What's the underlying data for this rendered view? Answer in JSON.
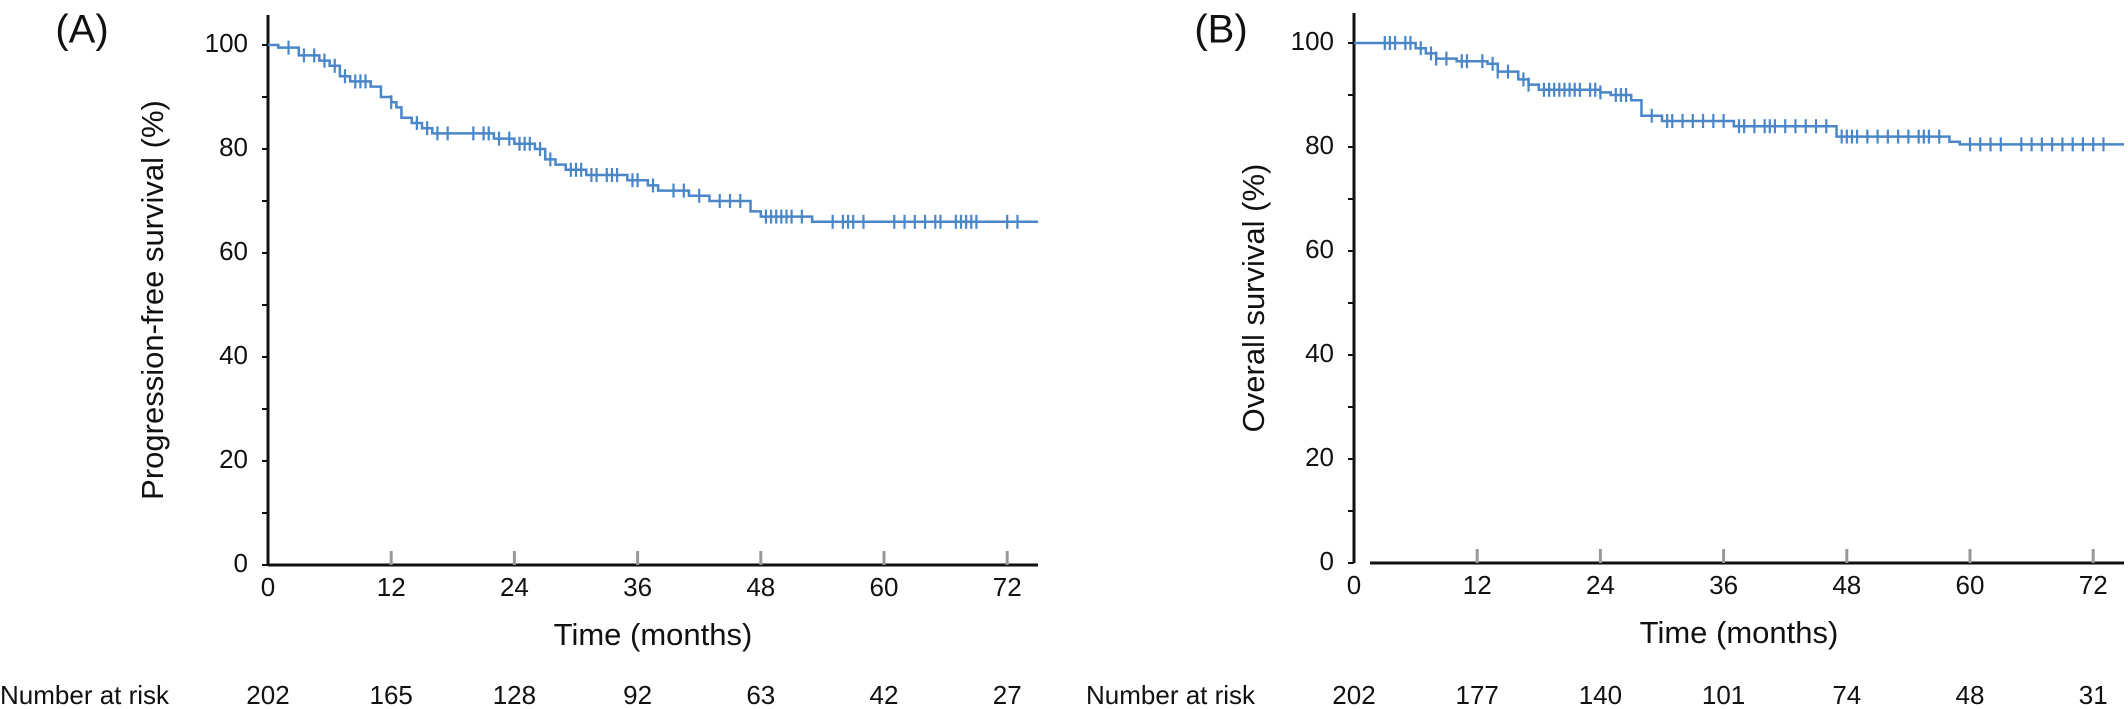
{
  "colors": {
    "curve": "#4a86c8",
    "axis": "#111111",
    "tick_minor": "#999999"
  },
  "chart_data": [
    {
      "panel_label": "(A)",
      "type": "line",
      "subtype": "kaplan-meier",
      "xlabel": "Time (months)",
      "ylabel": "Progression-free survival (%)",
      "xlim": [
        0,
        75
      ],
      "ylim": [
        0,
        100
      ],
      "x_ticks": [
        "0",
        "12",
        "24",
        "36",
        "48",
        "60",
        "72"
      ],
      "y_ticks": [
        "0",
        "20",
        "40",
        "60",
        "80",
        "100"
      ],
      "grid": false,
      "series": [
        {
          "steps": [
            [
              0,
              100
            ],
            [
              1,
              99.5
            ],
            [
              3,
              98
            ],
            [
              5,
              97
            ],
            [
              6,
              96
            ],
            [
              7,
              94
            ],
            [
              8,
              93
            ],
            [
              10,
              92
            ],
            [
              11,
              90
            ],
            [
              12,
              89
            ],
            [
              12.5,
              88
            ],
            [
              13,
              86
            ],
            [
              14,
              85
            ],
            [
              15,
              84
            ],
            [
              16,
              83
            ],
            [
              22,
              82
            ],
            [
              24,
              81
            ],
            [
              26,
              80
            ],
            [
              27,
              78
            ],
            [
              28,
              77
            ],
            [
              29,
              76
            ],
            [
              31,
              75
            ],
            [
              35,
              74
            ],
            [
              37,
              73
            ],
            [
              38,
              72
            ],
            [
              41,
              71
            ],
            [
              43,
              70
            ],
            [
              47,
              68
            ],
            [
              48,
              67
            ],
            [
              53,
              66
            ]
          ],
          "end_x": 75,
          "censor_times": [
            2,
            3.5,
            4.5,
            5.5,
            6.5,
            7.5,
            8.5,
            9,
            9.5,
            12,
            14.5,
            15.5,
            16.5,
            17.5,
            20,
            21,
            21.5,
            22.5,
            23.5,
            24.5,
            25,
            25.5,
            26.5,
            27.5,
            29.5,
            30,
            30.5,
            31.5,
            32,
            33,
            33.5,
            34,
            35.5,
            36,
            37.5,
            39.5,
            40.5,
            42,
            44,
            45,
            46,
            48.5,
            49,
            49.5,
            50,
            50.5,
            51,
            52,
            55,
            56,
            56.5,
            57,
            58,
            61,
            62,
            63,
            64,
            65,
            65.5,
            67,
            67.5,
            68,
            68.5,
            69,
            72,
            73
          ]
        }
      ],
      "risk_table": {
        "label": "Number at risk",
        "values": [
          "202",
          "165",
          "128",
          "92",
          "63",
          "42",
          "27"
        ]
      }
    },
    {
      "panel_label": "(B)",
      "type": "line",
      "subtype": "kaplan-meier",
      "xlabel": "Time (months)",
      "ylabel": "Overall survival (%)",
      "xlim": [
        0,
        75
      ],
      "ylim": [
        0,
        100
      ],
      "x_ticks": [
        "0",
        "12",
        "24",
        "36",
        "48",
        "60",
        "72"
      ],
      "y_ticks": [
        "0",
        "20",
        "40",
        "60",
        "80",
        "100"
      ],
      "grid": false,
      "series": [
        {
          "steps": [
            [
              0,
              100
            ],
            [
              6,
              99
            ],
            [
              7,
              98
            ],
            [
              8,
              97
            ],
            [
              10,
              96.5
            ],
            [
              13,
              96
            ],
            [
              14,
              94.5
            ],
            [
              16,
              93
            ],
            [
              17,
              92
            ],
            [
              18,
              91
            ],
            [
              24,
              90.5
            ],
            [
              25,
              90
            ],
            [
              27,
              89
            ],
            [
              28,
              86
            ],
            [
              30,
              85
            ],
            [
              37,
              84
            ],
            [
              47,
              82
            ],
            [
              58,
              81
            ],
            [
              59,
              80.5
            ]
          ],
          "end_x": 75,
          "censor_times": [
            3,
            3.5,
            4,
            5,
            5.5,
            6.5,
            7.5,
            8,
            9,
            10.5,
            11,
            12.5,
            13.5,
            14,
            15,
            16.5,
            17,
            18.5,
            19,
            19.5,
            20,
            20.5,
            21,
            21.5,
            22,
            23,
            23.5,
            24,
            25.5,
            26,
            26.5,
            29,
            30.5,
            31,
            32,
            33,
            34,
            35,
            36,
            37.5,
            38,
            39,
            40,
            40.5,
            41,
            42,
            43,
            44,
            45,
            46,
            47.5,
            48,
            48.5,
            49,
            50,
            51,
            52,
            53,
            54,
            55,
            55.5,
            56,
            57,
            60,
            61,
            62,
            63,
            65,
            66,
            67,
            68,
            69,
            70,
            71,
            72,
            73
          ]
        }
      ],
      "risk_table": {
        "label": "Number at risk",
        "values": [
          "202",
          "177",
          "140",
          "101",
          "74",
          "48",
          "31"
        ]
      }
    }
  ]
}
